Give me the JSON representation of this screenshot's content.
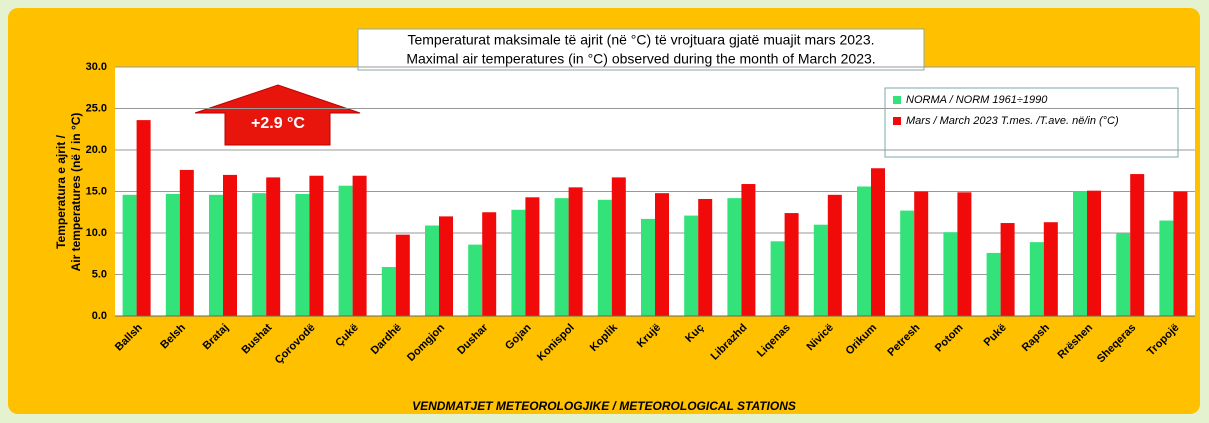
{
  "chart_data": {
    "type": "bar",
    "title": "Temperaturat maksimale të ajrit (në °C) të vrojtuara gjatë muajit mars 2023.",
    "subtitle": "Maximal air temperatures (in °C) observed during the month of March 2023.",
    "ylabel": [
      "Temperatura e ajrit /",
      "Air temperatures (në / in °C)"
    ],
    "xlabel": "VENDMATJET  METEOROLOGJIKE / METEOROLOGICAL STATIONS",
    "annotation": "+2.9 °C",
    "categories": [
      "Ballsh",
      "Belsh",
      "Brataj",
      "Bushat",
      "Çorovodë",
      "Çukë",
      "Dardhë",
      "Domgjon",
      "Dushar",
      "Gojan",
      "Konispol",
      "Koplik",
      "Krujë",
      "Kuç",
      "Librazhd",
      "Liqenas",
      "Nivicë",
      "Orikum",
      "Petresh",
      "Potom",
      "Pukë",
      "Rapsh",
      "Rrëshen",
      "Sheqeras",
      "Tropojë"
    ],
    "series": [
      {
        "name": "NORMA / NORM 1961÷1990",
        "color": "#33e37a",
        "values": [
          14.6,
          14.7,
          14.6,
          14.8,
          14.7,
          15.7,
          5.9,
          10.9,
          8.6,
          12.8,
          14.2,
          14.0,
          11.7,
          12.1,
          14.2,
          9.0,
          11.0,
          15.6,
          12.7,
          10.1,
          7.6,
          8.9,
          15.0,
          10.0,
          11.5
        ]
      },
      {
        "name": "Mars / March 2023  T.mes. /T.ave. në/in (°C)",
        "color": "#f00a0a",
        "values": [
          23.6,
          17.6,
          17.0,
          16.7,
          16.9,
          16.9,
          9.8,
          12.0,
          12.5,
          14.3,
          15.5,
          16.7,
          14.8,
          14.1,
          15.9,
          12.4,
          14.6,
          17.8,
          15.0,
          14.9,
          11.2,
          11.3,
          15.1,
          17.1,
          15.0
        ]
      }
    ],
    "ylim": [
      0,
      30
    ],
    "yticks": [
      {
        "value": 0,
        "label": "0.0"
      },
      {
        "value": 5,
        "label": "5.0"
      },
      {
        "value": 10,
        "label": "10.0"
      },
      {
        "value": 15,
        "label": "15.0"
      },
      {
        "value": 20,
        "label": "20.0"
      },
      {
        "value": 25,
        "label": "25.0"
      },
      {
        "value": 30,
        "label": "30.0"
      }
    ],
    "grid": true,
    "legend": "upper right"
  }
}
